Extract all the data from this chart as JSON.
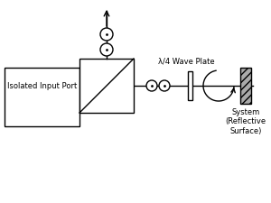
{
  "bg_color": "#ffffff",
  "line_color": "#000000",
  "text_color": "#000000",
  "box_isolated_label": "Isolated Input Port",
  "waveplate_label": "λ/4 Wave Plate",
  "system_label": "System\n(Reflective\nSurface)"
}
